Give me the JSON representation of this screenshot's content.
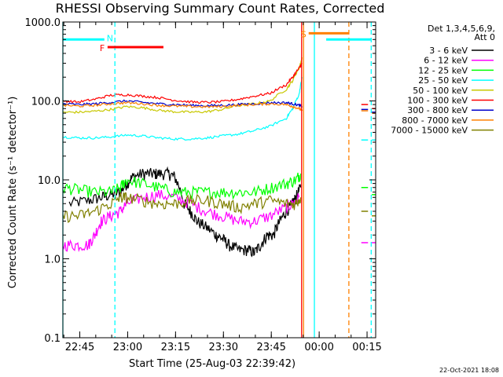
{
  "chart_data": {
    "type": "line",
    "title": "RHESSI Observing Summary Count Rates, Corrected",
    "xlabel": "Start Time (25-Aug-03 22:39:42)",
    "ylabel": "Corrected Count Rate (s⁻¹ detector⁻¹)",
    "yscale": "log",
    "ylim": [
      0.1,
      1000
    ],
    "xlim_minutes": [
      0,
      98
    ],
    "y_ticks": [
      "1000.0",
      "100.0",
      "10.0",
      "1.0",
      "0.1"
    ],
    "x_ticks": [
      {
        "label": "22:45",
        "minute": 5.3
      },
      {
        "label": "23:00",
        "minute": 20.3
      },
      {
        "label": "23:15",
        "minute": 35.3
      },
      {
        "label": "23:30",
        "minute": 50.3
      },
      {
        "label": "23:45",
        "minute": 65.3
      },
      {
        "label": "00:00",
        "minute": 80.3
      },
      {
        "label": "00:15",
        "minute": 95.3
      }
    ],
    "legend_header": [
      "Det 1,3,4,5,6,9,",
      "Att 0"
    ],
    "series": [
      {
        "name": "3 - 6 keV",
        "color": "#000000",
        "x": [
          2,
          8,
          12,
          15,
          18,
          20,
          22,
          25,
          28,
          30,
          33,
          35,
          38,
          40,
          42,
          45,
          48,
          50,
          52,
          55,
          58,
          60,
          62,
          64,
          66,
          68,
          70,
          72,
          73,
          74.5
        ],
        "y": [
          5,
          5.5,
          6,
          6.5,
          7,
          9,
          11,
          12,
          12,
          12,
          12,
          11,
          5,
          4,
          3,
          2.5,
          2,
          1.8,
          1.5,
          1.3,
          1.3,
          1.2,
          1.5,
          2,
          2,
          3,
          4,
          5,
          6,
          8
        ]
      },
      {
        "name": "6 - 12 keV",
        "color": "#ff00ff",
        "x": [
          0,
          4,
          8,
          10,
          12,
          15,
          18,
          20,
          25,
          30,
          35,
          40,
          45,
          50,
          55,
          60,
          65,
          70,
          72,
          74
        ],
        "y": [
          1.5,
          1.5,
          1.5,
          2,
          3,
          3.5,
          4,
          5,
          6,
          6.5,
          6,
          5,
          4,
          3.5,
          3,
          3,
          3.5,
          4.5,
          5,
          6
        ]
      },
      {
        "name": "12 - 25 keV",
        "color": "#00ff00",
        "x": [
          0,
          5,
          10,
          15,
          18,
          20,
          25,
          30,
          35,
          40,
          45,
          50,
          55,
          60,
          65,
          70,
          73,
          74.5
        ],
        "y": [
          8,
          7.5,
          7,
          7,
          8,
          10,
          9,
          8,
          7,
          7,
          7,
          7,
          7,
          7,
          8,
          9,
          10,
          12
        ]
      },
      {
        "name": "25 - 50 keV",
        "color": "#00ffff",
        "x": [
          0,
          5,
          10,
          15,
          20,
          25,
          30,
          35,
          40,
          45,
          50,
          55,
          60,
          65,
          70,
          72,
          74,
          75
        ],
        "y": [
          35,
          34,
          34,
          35,
          37,
          36,
          34,
          33,
          33,
          34,
          36,
          38,
          42,
          48,
          60,
          80,
          120,
          200
        ]
      },
      {
        "name": "50 - 100 keV",
        "color": "#c8c800",
        "x": [
          0,
          5,
          10,
          15,
          20,
          25,
          30,
          35,
          40,
          45,
          50,
          55,
          60,
          65,
          70,
          72,
          74,
          75
        ],
        "y": [
          72,
          72,
          74,
          78,
          85,
          82,
          76,
          73,
          72,
          73,
          78,
          88,
          92,
          100,
          140,
          180,
          260,
          350
        ]
      },
      {
        "name": "100 - 300 keV",
        "color": "#ff0000",
        "x": [
          0,
          5,
          10,
          15,
          20,
          25,
          30,
          35,
          40,
          45,
          50,
          55,
          60,
          65,
          70,
          72,
          74,
          75
        ],
        "y": [
          100,
          97,
          105,
          118,
          120,
          115,
          110,
          102,
          97,
          96,
          98,
          105,
          115,
          125,
          160,
          200,
          260,
          300
        ]
      },
      {
        "name": "300 - 800 keV",
        "color": "#0000cc",
        "x": [
          0,
          5,
          10,
          15,
          20,
          25,
          30,
          35,
          40,
          45,
          50,
          55,
          60,
          65,
          70,
          72,
          74,
          75
        ],
        "y": [
          92,
          90,
          92,
          96,
          100,
          96,
          92,
          90,
          88,
          87,
          88,
          90,
          92,
          95,
          95,
          92,
          88,
          85
        ]
      },
      {
        "name": "800 - 7000 keV",
        "color": "#ff8000",
        "x": [
          0,
          5,
          10,
          15,
          20,
          25,
          30,
          35,
          40,
          45,
          50,
          55,
          60,
          65,
          70,
          72,
          74,
          75
        ],
        "y": [
          88,
          86,
          88,
          92,
          95,
          92,
          88,
          86,
          85,
          84,
          85,
          88,
          90,
          92,
          90,
          85,
          80,
          75
        ]
      },
      {
        "name": "7000 - 15000 keV",
        "color": "#808000",
        "x": [
          0,
          5,
          10,
          15,
          18,
          20,
          25,
          30,
          35,
          40,
          45,
          50,
          55,
          60,
          65,
          70,
          73,
          74.5
        ],
        "y": [
          3.5,
          3.5,
          4,
          5,
          6,
          6,
          5.5,
          5,
          5,
          5.5,
          5.5,
          5,
          4.5,
          5,
          5.5,
          5,
          5,
          6
        ]
      }
    ],
    "post_gap_levels": [
      {
        "color": "#ff0000",
        "values": [
          90,
          80
        ]
      },
      {
        "color": "#0000cc",
        "values": [
          78,
          72
        ]
      },
      {
        "color": "#ff8000",
        "values": [
          75,
          70
        ]
      },
      {
        "color": "#00ffff",
        "values": [
          32,
          32
        ]
      },
      {
        "color": "#00ff00",
        "values": [
          8,
          6.5
        ]
      },
      {
        "color": "#808000",
        "values": [
          4,
          3.5
        ]
      },
      {
        "color": "#ff00ff",
        "values": [
          1.6,
          1.6
        ]
      }
    ],
    "annotations": [
      {
        "label": "N",
        "color": "#00ffff",
        "type": "bar",
        "start": 0,
        "end": 13,
        "level": 600
      },
      {
        "label": "F",
        "color": "#ff0000",
        "type": "bar",
        "start": 14,
        "end": 31.5,
        "level": 480
      },
      {
        "label": "S",
        "color": "#ff8000",
        "type": "bar",
        "start": 77,
        "end": 89.5,
        "level": 720
      },
      {
        "label": "",
        "color": "#00ffff",
        "type": "bar",
        "start": 82.5,
        "end": 96.5,
        "level": 600
      }
    ],
    "vlines": [
      {
        "minute": 0,
        "color": "#00ffff",
        "style": "solid"
      },
      {
        "minute": 16.3,
        "color": "#00ffff",
        "style": "dashed"
      },
      {
        "minute": 74.8,
        "color": "#ff0000",
        "style": "solid"
      },
      {
        "minute": 75.4,
        "color": "#ff8000",
        "style": "solid"
      },
      {
        "minute": 78.8,
        "color": "#00ffff",
        "style": "solid"
      },
      {
        "minute": 89.6,
        "color": "#ff8000",
        "style": "dashed"
      },
      {
        "minute": 96.6,
        "color": "#00ffff",
        "style": "dashed"
      }
    ],
    "timestamp": "22-Oct-2021 18:08"
  }
}
